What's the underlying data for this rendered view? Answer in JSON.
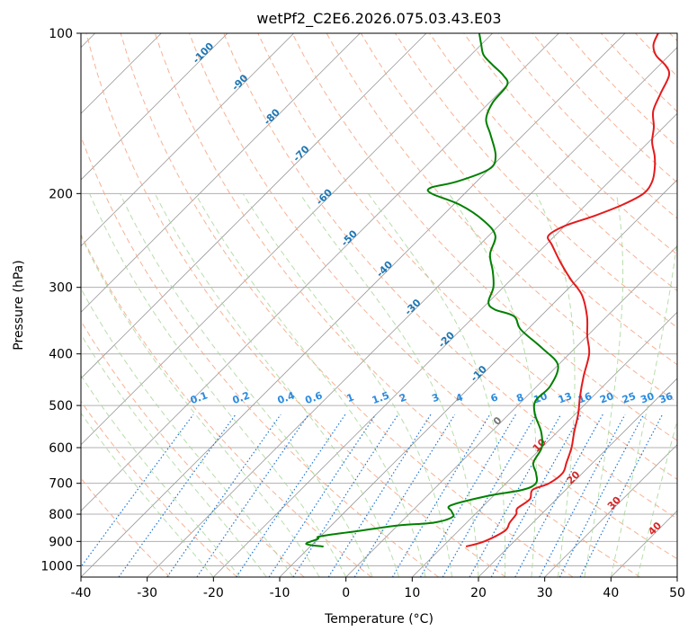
{
  "chart_data": {
    "type": "line",
    "title": "wetPf2_C2E6.2026.075.03.43.E03",
    "xlabel": "Temperature (°C)",
    "ylabel": "Pressure (hPa)",
    "xlim": [
      -40,
      50
    ],
    "ylim": [
      1050,
      100
    ],
    "y_scale": "log",
    "skew": true,
    "grid": true,
    "x_ticks": [
      "-40",
      "-30",
      "-20",
      "-10",
      "0",
      "10",
      "20",
      "30",
      "40",
      "50"
    ],
    "y_ticks": [
      "100",
      "200",
      "300",
      "400",
      "500",
      "600",
      "700",
      "800",
      "900",
      "1000"
    ],
    "series": [
      {
        "name": "",
        "color": "#e41a1c",
        "points": [
          [
            13.5,
            920
          ],
          [
            15.5,
            900
          ],
          [
            17.0,
            860
          ],
          [
            16.5,
            830
          ],
          [
            16.2,
            800
          ],
          [
            15.5,
            780
          ],
          [
            16.0,
            750
          ],
          [
            15.0,
            720
          ],
          [
            16.5,
            700
          ],
          [
            17.0,
            670
          ],
          [
            16.0,
            640
          ],
          [
            14.5,
            600
          ],
          [
            12.5,
            560
          ],
          [
            10.5,
            520
          ],
          [
            8.0,
            480
          ],
          [
            5.5,
            440
          ],
          [
            3.0,
            400
          ],
          [
            0.0,
            370
          ],
          [
            -3.0,
            340
          ],
          [
            -7.0,
            310
          ],
          [
            -11.0,
            290
          ],
          [
            -15.0,
            270
          ],
          [
            -19.0,
            250
          ],
          [
            -21.0,
            240
          ],
          [
            -20.0,
            230
          ],
          [
            -17.0,
            220
          ],
          [
            -14.5,
            210
          ],
          [
            -13.0,
            200
          ],
          [
            -13.5,
            190
          ],
          [
            -15.0,
            180
          ],
          [
            -17.0,
            170
          ],
          [
            -19.5,
            160
          ],
          [
            -21.5,
            150
          ],
          [
            -24.0,
            140
          ],
          [
            -25.5,
            130
          ],
          [
            -27.0,
            120
          ],
          [
            -29.0,
            115
          ],
          [
            -32.0,
            110
          ],
          [
            -34.0,
            105
          ],
          [
            -35.0,
            100
          ]
        ]
      },
      {
        "name": "",
        "color": "#008000",
        "points": [
          [
            -8.0,
            920
          ],
          [
            -11.0,
            910
          ],
          [
            -10.0,
            890
          ],
          [
            -10.0,
            880
          ],
          [
            -5.0,
            860
          ],
          [
            0.0,
            840
          ],
          [
            5.0,
            830
          ],
          [
            7.0,
            810
          ],
          [
            6.0,
            790
          ],
          [
            5.0,
            770
          ],
          [
            9.0,
            740
          ],
          [
            13.5,
            720
          ],
          [
            14.5,
            700
          ],
          [
            13.0,
            670
          ],
          [
            11.0,
            640
          ],
          [
            10.0,
            600
          ],
          [
            7.5,
            560
          ],
          [
            4.0,
            520
          ],
          [
            2.0,
            490
          ],
          [
            2.0,
            460
          ],
          [
            0.0,
            420
          ],
          [
            -5.0,
            390
          ],
          [
            -11.0,
            360
          ],
          [
            -14.0,
            340
          ],
          [
            -18.0,
            330
          ],
          [
            -20.0,
            320
          ],
          [
            -21.5,
            300
          ],
          [
            -24.0,
            280
          ],
          [
            -27.0,
            260
          ],
          [
            -29.0,
            240
          ],
          [
            -33.0,
            225
          ],
          [
            -39.0,
            210
          ],
          [
            -45.0,
            200
          ],
          [
            -46.0,
            195
          ],
          [
            -43.0,
            190
          ],
          [
            -40.0,
            180
          ],
          [
            -41.0,
            170
          ],
          [
            -45.0,
            155
          ],
          [
            -48.0,
            145
          ],
          [
            -49.5,
            135
          ],
          [
            -50.0,
            125
          ],
          [
            -52.0,
            120
          ],
          [
            -55.0,
            115
          ],
          [
            -58.0,
            110
          ],
          [
            -60.0,
            105
          ],
          [
            -62.0,
            100
          ]
        ]
      }
    ],
    "mixing_ratio_labels": [
      "0.1",
      "0.2",
      "0.4",
      "0.6",
      "1",
      "1.5",
      "2",
      "3",
      "4",
      "6",
      "8",
      "10",
      "13",
      "16",
      "20",
      "25",
      "30",
      "36"
    ],
    "mixing_ratio_values": [
      0.1,
      0.2,
      0.4,
      0.6,
      1,
      1.5,
      2,
      3,
      4,
      6,
      8,
      10,
      13,
      16,
      20,
      25,
      30,
      36
    ],
    "isotherm_labels_blue": [
      "-100",
      "-90",
      "-80",
      "-70",
      "-60",
      "-50",
      "-40",
      "-30",
      "-20",
      "-10"
    ],
    "isotherm_labels_red": [
      "10",
      "20",
      "30",
      "40"
    ],
    "isotherm_label_gray": "0",
    "colors": {
      "isotherm": "#999999",
      "dry_adiabat": "#f4a582",
      "moist_adiabat": "#a6d496",
      "mixing_ratio": "#1f77d4",
      "isotherm_label_blue": "#1f77b4",
      "isotherm_label_red": "#d62728",
      "mixing_label": "#2a8be0"
    }
  }
}
